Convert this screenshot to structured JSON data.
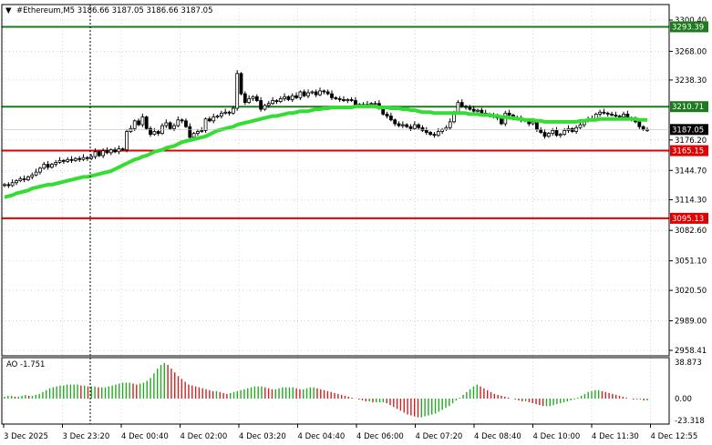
{
  "symbol_header": {
    "arrow_glyph": "▼",
    "text": "#Ethereum,M5  3186.66 3187.05 3186.66 3187.05"
  },
  "chart_data": [
    {
      "type": "candlestick",
      "title": "#Ethereum,M5  3186.66 3187.05 3186.66 3187.05",
      "ylim": [
        2958.41,
        3300.4
      ],
      "y_ticks": [
        "3300.40",
        "3268.00",
        "3238.30",
        "3176.20",
        "3144.70",
        "3114.30",
        "3082.60",
        "3051.10",
        "3020.50",
        "2989.00",
        "2958.41"
      ],
      "x_ticks": [
        "3 Dec 2025",
        "3 Dec 23:20",
        "4 Dec 00:40",
        "4 Dec 02:00",
        "4 Dec 03:20",
        "4 Dec 04:40",
        "4 Dec 06:00",
        "4 Dec 07:20",
        "4 Dec 08:40",
        "4 Dec 10:00",
        "4 Dec 11:30",
        "4 Dec 12:55"
      ],
      "current_price": {
        "value": 3187.05,
        "label": "3187.05",
        "color": "#000000"
      },
      "horizontal_levels": [
        {
          "value": 3293.39,
          "label": "3293.39",
          "color": "#1e7a1e"
        },
        {
          "value": 3210.71,
          "label": "3210.71",
          "color": "#1e7a1e"
        },
        {
          "value": 3165.15,
          "label": "3165.15",
          "color": "#e00000"
        },
        {
          "value": 3095.13,
          "label": "3095.13",
          "color": "#e00000"
        }
      ],
      "moving_average_color": "#33dd33",
      "grid": true,
      "closes": [
        3130,
        3129,
        3132,
        3134,
        3136,
        3135,
        3138,
        3140,
        3143,
        3147,
        3151,
        3148,
        3151,
        3153,
        3155,
        3154,
        3156,
        3155,
        3157,
        3156,
        3158,
        3157,
        3159,
        3164,
        3160,
        3165,
        3163,
        3166,
        3164,
        3167,
        3166,
        3185,
        3188,
        3196,
        3192,
        3200,
        3188,
        3182,
        3185,
        3183,
        3191,
        3194,
        3188,
        3191,
        3197,
        3196,
        3190,
        3179,
        3183,
        3185,
        3186,
        3198,
        3196,
        3200,
        3201,
        3204,
        3205,
        3204,
        3209,
        3245,
        3224,
        3215,
        3219,
        3221,
        3217,
        3208,
        3212,
        3214,
        3217,
        3216,
        3219,
        3221,
        3218,
        3222,
        3220,
        3226,
        3222,
        3225,
        3226,
        3223,
        3227,
        3226,
        3224,
        3220,
        3219,
        3218,
        3217,
        3218,
        3217,
        3212,
        3213,
        3212,
        3213,
        3214,
        3214,
        3210,
        3203,
        3201,
        3197,
        3193,
        3191,
        3192,
        3190,
        3188,
        3192,
        3189,
        3186,
        3184,
        3182,
        3181,
        3185,
        3187,
        3189,
        3195,
        3205,
        3215,
        3211,
        3210,
        3208,
        3206,
        3207,
        3204,
        3203,
        3202,
        3200,
        3199,
        3193,
        3204,
        3202,
        3199,
        3198,
        3197,
        3196,
        3193,
        3195,
        3187,
        3184,
        3180,
        3183,
        3186,
        3181,
        3182,
        3186,
        3188,
        3185,
        3189,
        3192,
        3196,
        3198,
        3198,
        3203,
        3205,
        3204,
        3203,
        3202,
        3201,
        3200,
        3203,
        3199,
        3198,
        3195,
        3190,
        3187,
        3187
      ],
      "ma": [
        3117,
        3118,
        3119,
        3121,
        3122,
        3123,
        3124,
        3126,
        3127,
        3128,
        3129,
        3130,
        3130,
        3131,
        3132,
        3133,
        3134,
        3135,
        3136,
        3137,
        3138,
        3138,
        3139,
        3140,
        3141,
        3142,
        3143,
        3144,
        3146,
        3148,
        3150,
        3152,
        3154,
        3156,
        3157,
        3159,
        3160,
        3162,
        3164,
        3165,
        3166,
        3168,
        3169,
        3170,
        3172,
        3174,
        3175,
        3176,
        3177,
        3178,
        3179,
        3180,
        3182,
        3184,
        3186,
        3187,
        3188,
        3189,
        3190,
        3192,
        3193,
        3194,
        3195,
        3196,
        3197,
        3198,
        3199,
        3200,
        3201,
        3201,
        3202,
        3203,
        3204,
        3204,
        3205,
        3206,
        3206,
        3206,
        3207,
        3208,
        3208,
        3209,
        3209,
        3210,
        3210,
        3210,
        3210,
        3210,
        3210,
        3211,
        3211,
        3211,
        3211,
        3211,
        3211,
        3210,
        3210,
        3210,
        3209,
        3209,
        3209,
        3208,
        3208,
        3207,
        3207,
        3206,
        3205,
        3205,
        3205,
        3204,
        3204,
        3204,
        3204,
        3204,
        3204,
        3204,
        3204,
        3204,
        3203,
        3203,
        3203,
        3202,
        3202,
        3202,
        3201,
        3201,
        3200,
        3200,
        3199,
        3199,
        3198,
        3198,
        3197,
        3197,
        3197,
        3196,
        3196,
        3195,
        3195,
        3195,
        3195,
        3195,
        3195,
        3195,
        3195,
        3195,
        3196,
        3196,
        3197,
        3197,
        3197,
        3198,
        3198,
        3198,
        3198,
        3198,
        3198,
        3198,
        3198,
        3198,
        3198,
        3197,
        3197,
        3197
      ]
    },
    {
      "type": "bar",
      "title": "AO -1.751",
      "ylim": [
        -23.318,
        38.873
      ],
      "y_ticks": [
        "38.873",
        "0.00",
        "-23.318"
      ],
      "values": [
        2,
        3,
        3,
        2,
        2,
        3,
        4,
        3,
        3,
        4,
        5,
        7,
        9,
        11,
        12,
        13,
        14,
        14,
        15,
        15,
        15,
        15,
        14,
        14,
        13,
        13,
        13,
        12,
        12,
        12,
        13,
        14,
        15,
        16,
        17,
        17,
        17,
        16,
        15,
        16,
        17,
        19,
        22,
        27,
        32,
        36,
        38,
        36,
        32,
        28,
        24,
        21,
        18,
        15,
        14,
        13,
        12,
        11,
        10,
        9,
        8,
        8,
        7,
        6,
        5,
        6,
        7,
        8,
        9,
        10,
        11,
        12,
        13,
        13,
        13,
        12,
        11,
        10,
        10,
        11,
        12,
        12,
        12,
        12,
        11,
        10,
        10,
        11,
        12,
        12,
        11,
        10,
        9,
        8,
        7,
        6,
        5,
        4,
        3,
        2,
        1,
        0,
        -1,
        -2,
        -3,
        -3,
        -4,
        -4,
        -4,
        -4,
        -5,
        -7,
        -9,
        -11,
        -13,
        -15,
        -17,
        -18,
        -19,
        -20,
        -20,
        -19,
        -18,
        -17,
        -16,
        -14,
        -12,
        -10,
        -8,
        -5,
        -2,
        1,
        4,
        7,
        10,
        13,
        15,
        13,
        11,
        9,
        7,
        5,
        4,
        3,
        2,
        1,
        0,
        -1,
        -2,
        -3,
        -3,
        -4,
        -5,
        -6,
        -7,
        -8,
        -8,
        -8,
        -7,
        -6,
        -5,
        -4,
        -3,
        -2,
        -1,
        1,
        3,
        5,
        7,
        8,
        9,
        9,
        8,
        7,
        6,
        5,
        4,
        3,
        2,
        1,
        0,
        -1,
        -1,
        -1,
        -2,
        -2
      ]
    }
  ]
}
